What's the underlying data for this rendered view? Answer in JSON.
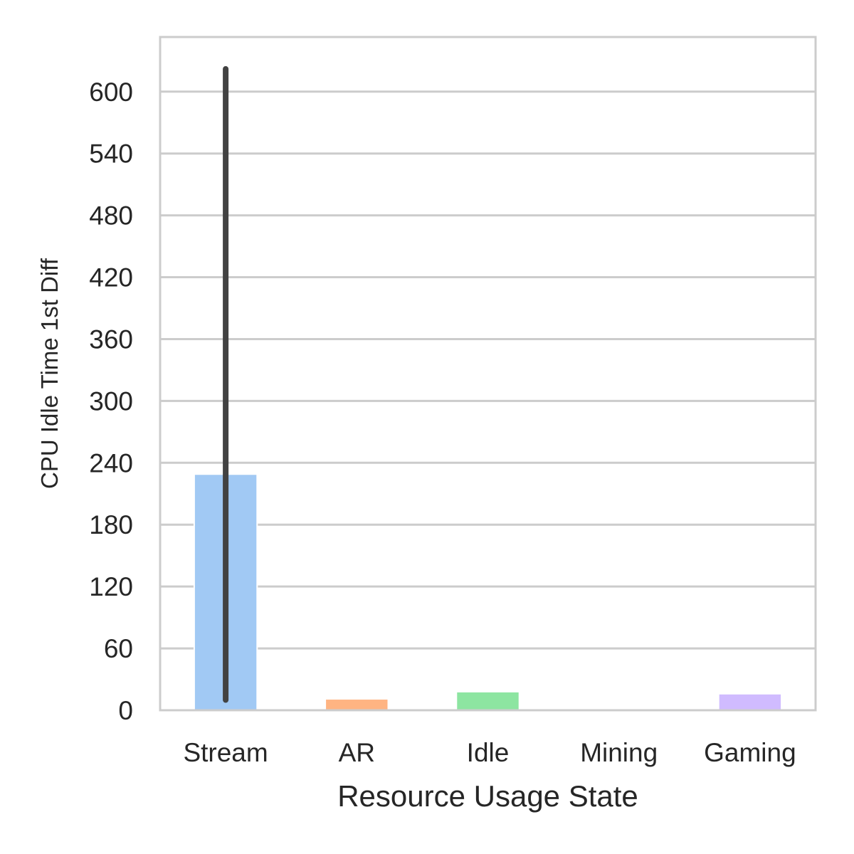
{
  "chart_data": {
    "type": "bar",
    "title": "",
    "xlabel": "Resource Usage State",
    "ylabel": "CPU Idle Time 1st Diff",
    "categories": [
      "Stream",
      "AR",
      "Idle",
      "Mining",
      "Gaming"
    ],
    "values": [
      229,
      11,
      18,
      0,
      16
    ],
    "error_bars": [
      {
        "low": 10,
        "high": 622
      },
      null,
      null,
      null,
      null
    ],
    "colors": [
      "#a1c9f4",
      "#ffb482",
      "#8de5a1",
      "#ff9f9b",
      "#d0bbff"
    ],
    "error_bar_color": "#424242",
    "ylim": [
      0,
      653
    ],
    "yticks": [
      0,
      60,
      120,
      180,
      240,
      300,
      360,
      420,
      480,
      540,
      600
    ],
    "grid": true,
    "grid_color": "#cccccc",
    "legend": null
  }
}
